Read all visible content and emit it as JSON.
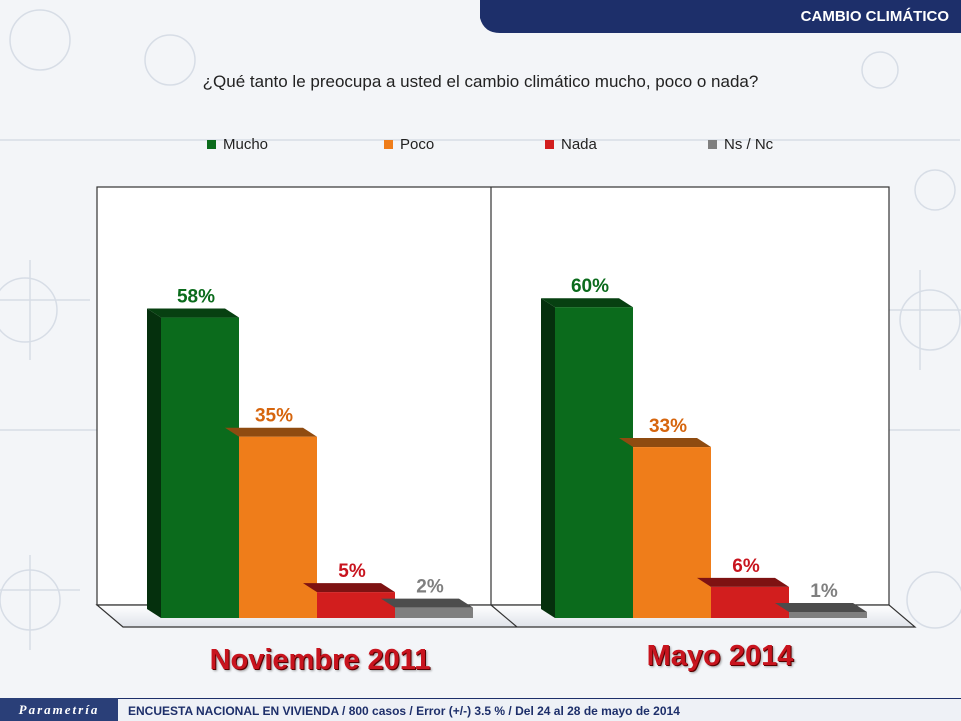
{
  "header": {
    "title": "CAMBIO CLIMÁTICO"
  },
  "question": "¿Qué tanto le preocupa a usted el cambio climático mucho, poco o nada?",
  "colors": {
    "accent": "#1d2f6a",
    "label_red": "#c8141e"
  },
  "chart_data": {
    "type": "bar",
    "categories": [
      "Noviembre 2011",
      "Mayo 2014"
    ],
    "series": [
      {
        "name": "Mucho",
        "color": "#0b6b1c",
        "label_color": "#0b6b1c",
        "values": [
          58,
          60
        ]
      },
      {
        "name": "Poco",
        "color": "#ef7d1a",
        "label_color": "#d6650d",
        "values": [
          35,
          33
        ]
      },
      {
        "name": "Nada",
        "color": "#d21e1e",
        "label_color": "#c8141e",
        "values": [
          5,
          6
        ]
      },
      {
        "name": "Ns / Nc",
        "color": "#7f7f7f",
        "label_color": "#7f7f7f",
        "values": [
          2,
          1
        ]
      }
    ],
    "value_labels": [
      [
        "58%",
        "35%",
        "5%",
        "2%"
      ],
      [
        "60%",
        "33%",
        "6%",
        "1%"
      ]
    ],
    "ylim": [
      0,
      75
    ],
    "legend_position": "top",
    "grid": false
  },
  "footer": {
    "logo": "Parametría",
    "text": "ENCUESTA NACIONAL EN VIVIENDA / 800 casos / Error (+/-) 3.5 % / Del 24 al 28 de mayo de 2014"
  }
}
